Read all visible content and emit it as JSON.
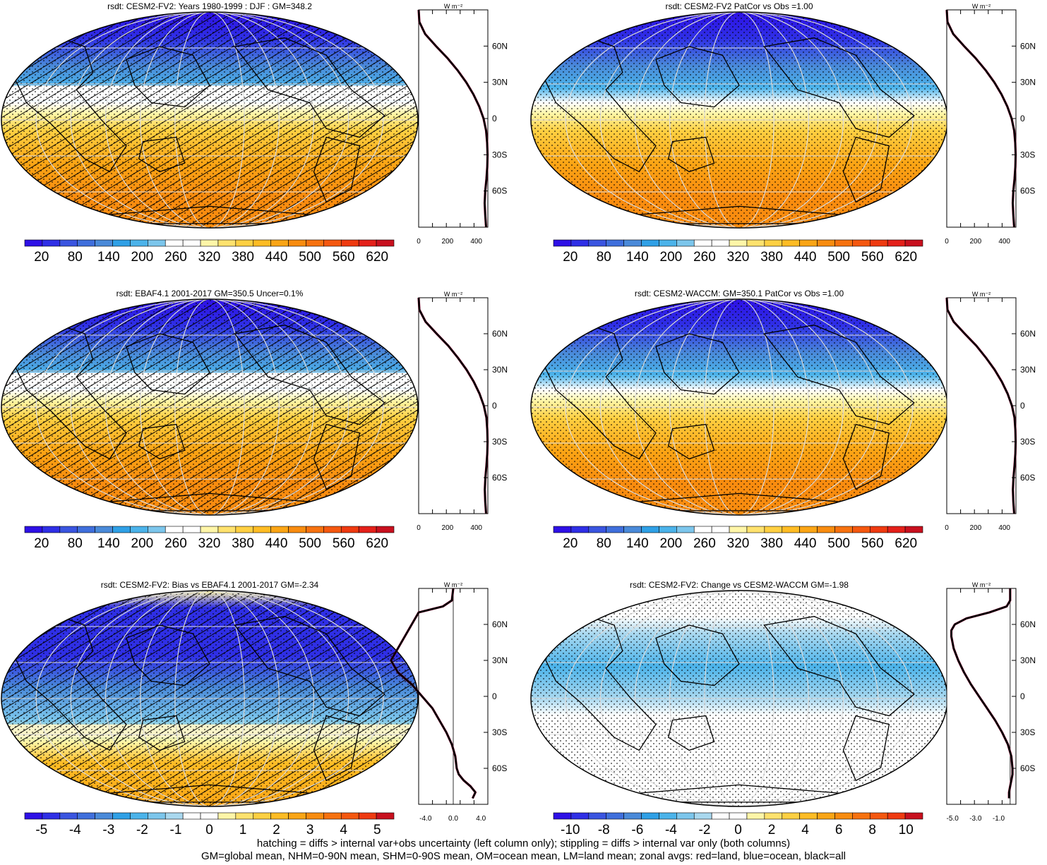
{
  "chart_data": [
    {
      "type": "heatmap",
      "title": "rsdt: CESM2-FV2: Years 1980-1999 : DJF : GM=348.2",
      "colorbar_ticks": [
        "20",
        "80",
        "140",
        "200",
        "260",
        "320",
        "380",
        "440",
        "500",
        "560",
        "620"
      ],
      "zonal_profile": {
        "title": "W m⁻²",
        "xlim": [
          0,
          480
        ],
        "xticks": [
          "0",
          "200",
          "400"
        ],
        "lat_labels": [
          "60N",
          "30N",
          "0",
          "30S",
          "60S"
        ],
        "lat": [
          90,
          80,
          70,
          60,
          50,
          40,
          30,
          20,
          10,
          0,
          -10,
          -20,
          -30,
          -40,
          -50,
          -60,
          -70,
          -80,
          -90
        ],
        "values": [
          0,
          5,
          45,
          120,
          200,
          270,
          330,
          380,
          420,
          450,
          468,
          475,
          478,
          476,
          470,
          462,
          458,
          462,
          468
        ]
      },
      "hatching": true,
      "stippling": true
    },
    {
      "type": "heatmap",
      "title": "rsdt: CESM2-FV2 PatCor vs Obs =1.00",
      "colorbar_ticks": [
        "20",
        "80",
        "140",
        "200",
        "260",
        "320",
        "380",
        "440",
        "500",
        "560",
        "620"
      ],
      "zonal_profile": {
        "title": "W m⁻²",
        "xlim": [
          0,
          480
        ],
        "xticks": [
          "0",
          "200",
          "400"
        ],
        "lat_labels": [
          "60N",
          "30N",
          "0",
          "30S",
          "60S"
        ],
        "lat": [
          90,
          80,
          70,
          60,
          50,
          40,
          30,
          20,
          10,
          0,
          -10,
          -20,
          -30,
          -40,
          -50,
          -60,
          -70,
          -80,
          -90
        ],
        "values": [
          0,
          5,
          45,
          120,
          200,
          270,
          330,
          380,
          420,
          450,
          468,
          475,
          478,
          476,
          470,
          462,
          458,
          462,
          468
        ]
      },
      "hatching": false,
      "stippling": true
    },
    {
      "type": "heatmap",
      "title": "rsdt: EBAF4.1 2001-2017 GM=350.5 Uncer=0.1%",
      "colorbar_ticks": [
        "20",
        "80",
        "140",
        "200",
        "260",
        "320",
        "380",
        "440",
        "500",
        "560",
        "620"
      ],
      "zonal_profile": {
        "title": "W m⁻²",
        "xlim": [
          0,
          480
        ],
        "xticks": [
          "0",
          "200",
          "400"
        ],
        "lat_labels": [
          "60N",
          "30N",
          "0",
          "30S",
          "60S"
        ],
        "lat": [
          90,
          80,
          70,
          60,
          50,
          40,
          30,
          20,
          10,
          0,
          -10,
          -20,
          -30,
          -40,
          -50,
          -60,
          -70,
          -80,
          -90
        ],
        "values": [
          0,
          5,
          48,
          125,
          205,
          272,
          332,
          382,
          422,
          452,
          470,
          476,
          478,
          476,
          470,
          463,
          459,
          462,
          468
        ]
      },
      "hatching": true,
      "stippling": true
    },
    {
      "type": "heatmap",
      "title": "rsdt: CESM2-WACCM: GM=350.1 PatCor vs Obs =1.00",
      "colorbar_ticks": [
        "20",
        "80",
        "140",
        "200",
        "260",
        "320",
        "380",
        "440",
        "500",
        "560",
        "620"
      ],
      "zonal_profile": {
        "title": "W m⁻²",
        "xlim": [
          0,
          480
        ],
        "xticks": [
          "0",
          "200",
          "400"
        ],
        "lat_labels": [
          "60N",
          "30N",
          "0",
          "30S",
          "60S"
        ],
        "lat": [
          90,
          80,
          70,
          60,
          50,
          40,
          30,
          20,
          10,
          0,
          -10,
          -20,
          -30,
          -40,
          -50,
          -60,
          -70,
          -80,
          -90
        ],
        "values": [
          0,
          5,
          48,
          125,
          205,
          272,
          332,
          382,
          422,
          452,
          470,
          476,
          478,
          476,
          470,
          463,
          459,
          462,
          468
        ]
      },
      "hatching": false,
      "stippling": true
    },
    {
      "type": "heatmap",
      "title": "rsdt: CESM2-FV2: Bias vs EBAF4.1 2001-2017 GM=-2.34",
      "colorbar_ticks": [
        "-5",
        "-4",
        "-3",
        "-2",
        "-1",
        "0",
        "1",
        "2",
        "3",
        "4",
        "5"
      ],
      "zonal_profile": {
        "title": "W m⁻²",
        "xlim": [
          -5,
          5
        ],
        "xticks": [
          "-4.0",
          "0.0",
          "4.0"
        ],
        "lat_labels": [
          "60N",
          "30N",
          "0",
          "30S",
          "60S"
        ],
        "lat": [
          90,
          80,
          75,
          70,
          60,
          50,
          40,
          30,
          20,
          10,
          0,
          -10,
          -20,
          -30,
          -40,
          -50,
          -60,
          -65,
          -70,
          -75,
          -80,
          -85
        ],
        "values": [
          0,
          -0.2,
          -1.5,
          -5,
          -6,
          -7,
          -8,
          -9,
          -8,
          -6,
          -4.5,
          -3,
          -2,
          -1,
          -0.2,
          0.3,
          0.5,
          0.8,
          1.5,
          2.5,
          3.2,
          2.8
        ]
      },
      "hatching": true,
      "stippling": true
    },
    {
      "type": "heatmap",
      "title": "rsdt: CESM2-FV2: Change vs CESM2-WACCM GM=-1.98",
      "colorbar_ticks": [
        "-10",
        "-8",
        "-6",
        "-4",
        "-2",
        "0",
        "2",
        "4",
        "6",
        "8",
        "10"
      ],
      "zonal_profile": {
        "title": "W m⁻²",
        "xlim": [
          -5.5,
          0.5
        ],
        "xticks": [
          "-5.0",
          "-3.0",
          "-1.0"
        ],
        "lat_labels": [
          "60N",
          "30N",
          "0",
          "30S",
          "60S"
        ],
        "lat": [
          90,
          80,
          75,
          70,
          65,
          60,
          55,
          50,
          40,
          30,
          20,
          10,
          0,
          -10,
          -20,
          -30,
          -40,
          -50,
          -60,
          -65,
          -70,
          -75,
          -80,
          -85
        ],
        "values": [
          0,
          0,
          -0.3,
          -1.8,
          -3.8,
          -4.8,
          -5.1,
          -5.1,
          -4.9,
          -4.5,
          -4,
          -3.4,
          -2.7,
          -2,
          -1.3,
          -0.7,
          -0.2,
          0.1,
          0.2,
          0.2,
          0.1,
          0,
          -0.1,
          -0.1
        ]
      },
      "hatching": false,
      "stippling": true
    }
  ],
  "colors": {
    "abs_palette": [
      "#2e10e6",
      "#2f2fe6",
      "#3a55e0",
      "#3f6fdc",
      "#4a8ad9",
      "#2fa0e6",
      "#4bb3ea",
      "#7cc6ec",
      "#ffffff",
      "#ffffff",
      "#fff6a8",
      "#ffe26e",
      "#ffd042",
      "#ffbc24",
      "#fba515",
      "#f98c0f",
      "#f7720f",
      "#f5580f",
      "#ef3a10",
      "#e4201a",
      "#c8101e"
    ],
    "diff_palette": [
      "#2e10e6",
      "#2f2fe6",
      "#3a55e0",
      "#3f6fdc",
      "#4a8ad9",
      "#2fa0e6",
      "#4bb3ea",
      "#7cc6ec",
      "#a9d8ef",
      "#ffffff",
      "#ffffff",
      "#fff6a8",
      "#ffe26e",
      "#ffd042",
      "#ffbc24",
      "#fba515",
      "#f98c0f",
      "#f7720f",
      "#f5580f",
      "#ef3a10",
      "#c8101e"
    ]
  },
  "footer": {
    "line1": "hatching = diffs > internal var+obs uncertainty (left column only); stippling = diffs > internal var only (both columns)",
    "line2": "GM=global mean, NHM=0-90N mean, SHM=0-90S mean, OM=ocean mean, LM=land mean; zonal avgs: red=land, blue=ocean, black=all"
  }
}
